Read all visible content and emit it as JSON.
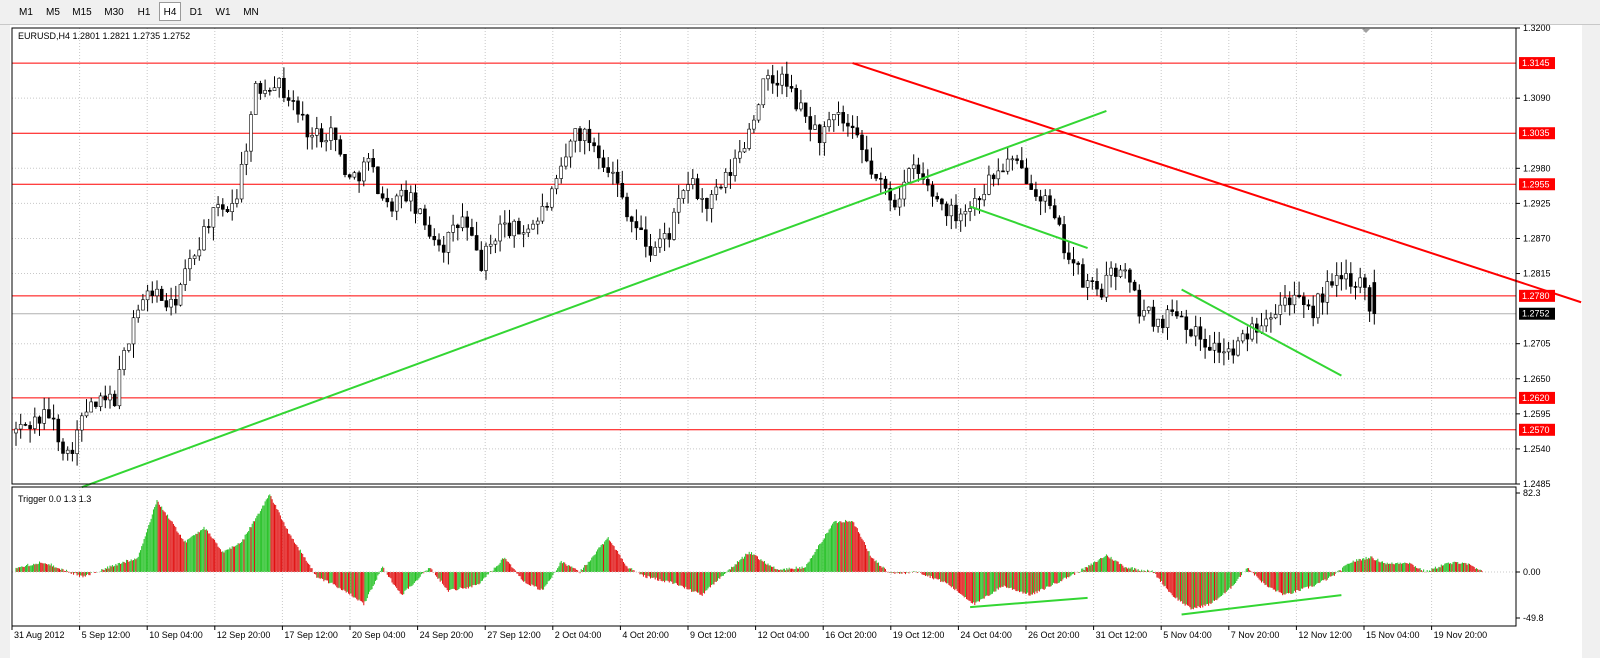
{
  "toolbar": {
    "timeframes": [
      "M1",
      "M5",
      "M15",
      "M30",
      "H1",
      "H4",
      "D1",
      "W1",
      "MN"
    ],
    "active": "H4"
  },
  "colors": {
    "bull": "#00b000",
    "bear": "#000000",
    "resistance": "#ff0000",
    "trendline_red": "#ff0000",
    "trendline_green": "#33d633",
    "osc_pos": "#22c022",
    "osc_neg": "#e01010",
    "current_price_bg": "#000000"
  },
  "chart_data": {
    "type": "candlestick",
    "title": "EURUSD,H4  1.2801 1.2821 1.2735 1.2752",
    "symbol": "EURUSD",
    "timeframe": "H4",
    "ohlc_last": {
      "open": 1.2801,
      "high": 1.2821,
      "low": 1.2735,
      "close": 1.2752
    },
    "ylim": [
      1.2485,
      1.32
    ],
    "price_axis_ticks": [
      "1.3200",
      "1.3090",
      "1.2980",
      "1.2925",
      "1.2870",
      "1.2815",
      "1.2705",
      "1.2650",
      "1.2595",
      "1.2540",
      "1.2485"
    ],
    "x_axis_labels": [
      "31 Aug 2012",
      "5 Sep 12:00",
      "10 Sep 04:00",
      "12 Sep 20:00",
      "17 Sep 12:00",
      "20 Sep 04:00",
      "24 Sep 20:00",
      "27 Sep 12:00",
      "2 Oct 04:00",
      "4 Oct 20:00",
      "9 Oct 12:00",
      "12 Oct 04:00",
      "16 Oct 20:00",
      "19 Oct 12:00",
      "24 Oct 04:00",
      "26 Oct 20:00",
      "31 Oct 12:00",
      "5 Nov 04:00",
      "7 Nov 20:00",
      "12 Nov 12:00",
      "15 Nov 04:00",
      "19 Nov 20:00"
    ],
    "horizontal_levels": [
      {
        "price": 1.3145,
        "label": "1.3145"
      },
      {
        "price": 1.3035,
        "label": "1.3035"
      },
      {
        "price": 1.2955,
        "label": "1.2955"
      },
      {
        "price": 1.278,
        "label": "1.2780"
      },
      {
        "price": 1.262,
        "label": "1.2620"
      },
      {
        "price": 1.257,
        "label": "1.2570"
      }
    ],
    "current_price": {
      "price": 1.2752,
      "label": "1.2752"
    },
    "anchors": [
      [
        0,
        1.2565
      ],
      [
        8,
        1.2595
      ],
      [
        12,
        1.253
      ],
      [
        16,
        1.26
      ],
      [
        22,
        1.262
      ],
      [
        26,
        1.275
      ],
      [
        30,
        1.279
      ],
      [
        34,
        1.276
      ],
      [
        38,
        1.283
      ],
      [
        42,
        1.29
      ],
      [
        46,
        1.292
      ],
      [
        48,
        1.294
      ],
      [
        52,
        1.31
      ],
      [
        56,
        1.312
      ],
      [
        60,
        1.308
      ],
      [
        64,
        1.303
      ],
      [
        68,
        1.304
      ],
      [
        72,
        1.296
      ],
      [
        76,
        1.299
      ],
      [
        80,
        1.292
      ],
      [
        84,
        1.294
      ],
      [
        88,
        1.289
      ],
      [
        92,
        1.286
      ],
      [
        96,
        1.29
      ],
      [
        100,
        1.283
      ],
      [
        104,
        1.289
      ],
      [
        108,
        1.288
      ],
      [
        112,
        1.29
      ],
      [
        116,
        1.295
      ],
      [
        120,
        1.304
      ],
      [
        124,
        1.302
      ],
      [
        128,
        1.297
      ],
      [
        132,
        1.29
      ],
      [
        136,
        1.285
      ],
      [
        140,
        1.288
      ],
      [
        144,
        1.296
      ],
      [
        148,
        1.292
      ],
      [
        152,
        1.296
      ],
      [
        156,
        1.302
      ],
      [
        160,
        1.311
      ],
      [
        164,
        1.312
      ],
      [
        168,
        1.307
      ],
      [
        172,
        1.303
      ],
      [
        176,
        1.306
      ],
      [
        180,
        1.302
      ],
      [
        184,
        1.296
      ],
      [
        188,
        1.293
      ],
      [
        192,
        1.298
      ],
      [
        196,
        1.294
      ],
      [
        200,
        1.291
      ],
      [
        204,
        1.292
      ],
      [
        208,
        1.296
      ],
      [
        212,
        1.299
      ],
      [
        216,
        1.297
      ],
      [
        220,
        1.293
      ],
      [
        224,
        1.286
      ],
      [
        228,
        1.28
      ],
      [
        232,
        1.279
      ],
      [
        236,
        1.283
      ],
      [
        240,
        1.276
      ],
      [
        244,
        1.274
      ],
      [
        248,
        1.276
      ],
      [
        252,
        1.272
      ],
      [
        256,
        1.27
      ],
      [
        260,
        1.269
      ],
      [
        264,
        1.273
      ],
      [
        268,
        1.276
      ],
      [
        272,
        1.278
      ],
      [
        276,
        1.275
      ],
      [
        280,
        1.279
      ],
      [
        284,
        1.281
      ],
      [
        288,
        1.2801
      ],
      [
        289,
        1.2752
      ]
    ],
    "trendlines": [
      {
        "color": "red",
        "x": [
          178,
          333
        ],
        "y": [
          1.3145,
          1.277
        ]
      },
      {
        "color": "green",
        "x": [
          14,
          232
        ],
        "y": [
          1.248,
          1.307
        ]
      },
      {
        "color": "green",
        "x": [
          203,
          228
        ],
        "y": [
          1.292,
          1.2855
        ]
      },
      {
        "color": "green",
        "x": [
          248,
          282
        ],
        "y": [
          1.279,
          1.2655
        ]
      }
    ],
    "oscillator": {
      "label": "Trigger 0.0 1.3 1.3",
      "ylim": [
        -49.8,
        82.3
      ],
      "ticks": [
        "82.3",
        "0.00",
        "-49.8"
      ],
      "anchors": [
        [
          0,
          5
        ],
        [
          6,
          10
        ],
        [
          14,
          -5
        ],
        [
          20,
          5
        ],
        [
          26,
          15
        ],
        [
          30,
          72
        ],
        [
          36,
          30
        ],
        [
          40,
          45
        ],
        [
          44,
          20
        ],
        [
          48,
          30
        ],
        [
          54,
          78
        ],
        [
          58,
          40
        ],
        [
          64,
          -5
        ],
        [
          70,
          -20
        ],
        [
          74,
          -35
        ],
        [
          78,
          5
        ],
        [
          82,
          -25
        ],
        [
          88,
          5
        ],
        [
          92,
          -20
        ],
        [
          98,
          -15
        ],
        [
          104,
          15
        ],
        [
          108,
          -10
        ],
        [
          112,
          -20
        ],
        [
          116,
          10
        ],
        [
          120,
          0
        ],
        [
          126,
          35
        ],
        [
          130,
          5
        ],
        [
          134,
          -5
        ],
        [
          140,
          -12
        ],
        [
          146,
          -25
        ],
        [
          150,
          -5
        ],
        [
          156,
          20
        ],
        [
          162,
          2
        ],
        [
          168,
          5
        ],
        [
          174,
          50
        ],
        [
          178,
          52
        ],
        [
          182,
          15
        ],
        [
          186,
          -2
        ],
        [
          192,
          0
        ],
        [
          198,
          -12
        ],
        [
          204,
          -35
        ],
        [
          210,
          -15
        ],
        [
          216,
          -25
        ],
        [
          222,
          -10
        ],
        [
          228,
          5
        ],
        [
          232,
          17
        ],
        [
          236,
          5
        ],
        [
          242,
          0
        ],
        [
          246,
          -25
        ],
        [
          250,
          -40
        ],
        [
          254,
          -35
        ],
        [
          258,
          -20
        ],
        [
          262,
          5
        ],
        [
          266,
          -15
        ],
        [
          270,
          -25
        ],
        [
          276,
          -15
        ],
        [
          280,
          -5
        ],
        [
          284,
          10
        ],
        [
          288,
          15
        ],
        [
          292,
          8
        ],
        [
          296,
          10
        ],
        [
          300,
          0
        ],
        [
          304,
          8
        ],
        [
          308,
          10
        ],
        [
          312,
          0
        ]
      ],
      "trendlines": [
        {
          "x": [
            203,
            228
          ],
          "y": [
            -38,
            -28
          ]
        },
        {
          "x": [
            248,
            282
          ],
          "y": [
            -46,
            -25
          ]
        }
      ]
    }
  }
}
